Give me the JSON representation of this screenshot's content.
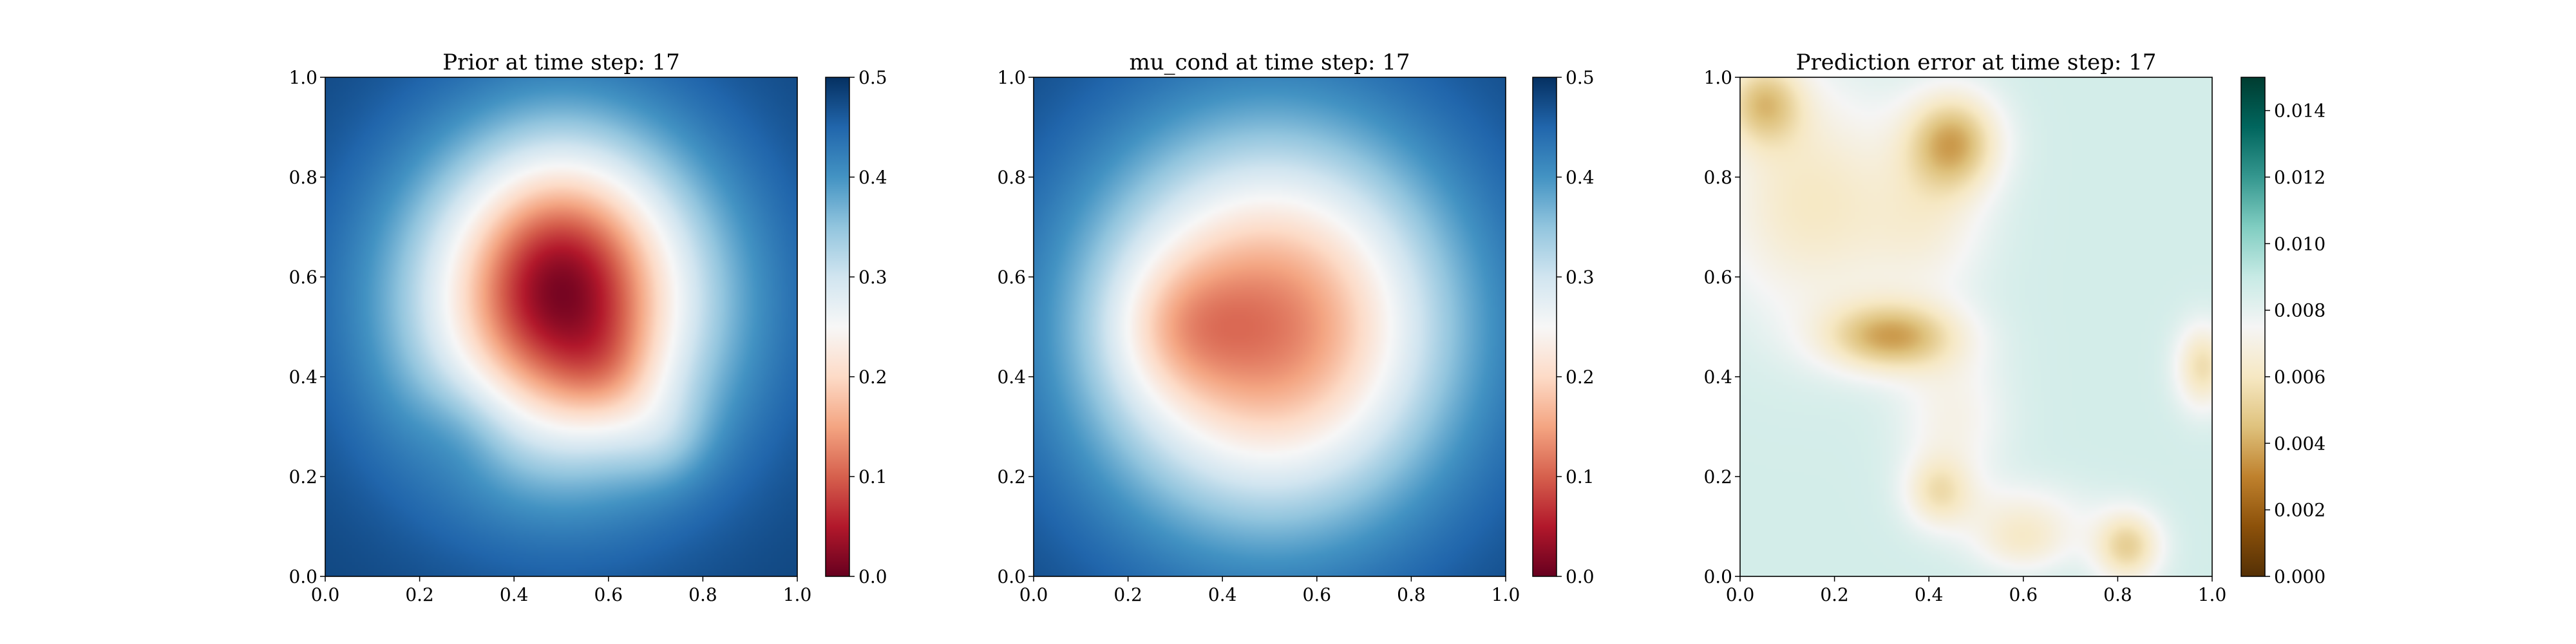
{
  "chart_data": [
    {
      "type": "heatmap",
      "title": "Prior at time step: 17",
      "xlim": [
        0,
        1
      ],
      "ylim": [
        0,
        1
      ],
      "xticks": [
        "0.0",
        "0.2",
        "0.4",
        "0.6",
        "0.8",
        "1.0"
      ],
      "yticks": [
        "0.0",
        "0.2",
        "0.4",
        "0.6",
        "0.8",
        "1.0"
      ],
      "colormap": "RdBu",
      "colorbar": {
        "range": [
          0,
          0.5
        ],
        "ticks": [
          "0.0",
          "0.1",
          "0.2",
          "0.3",
          "0.4",
          "0.5"
        ]
      },
      "field": {
        "background": 0.48,
        "blobs": [
          {
            "x": 0.5,
            "y": 0.55,
            "sx": 0.24,
            "sy": 0.24,
            "a": -0.35
          },
          {
            "x": 0.5,
            "y": 0.6,
            "sx": 0.13,
            "sy": 0.16,
            "a": -0.12
          },
          {
            "x": 0.6,
            "y": 0.4,
            "sx": 0.08,
            "sy": 0.08,
            "a": -0.05
          },
          {
            "x": 0.3,
            "y": 0.3,
            "sx": 0.08,
            "sy": 0.08,
            "a": 0.03
          },
          {
            "x": 0.72,
            "y": 0.28,
            "sx": 0.07,
            "sy": 0.07,
            "a": -0.04
          }
        ]
      }
    },
    {
      "type": "heatmap",
      "title": "mu_cond at time step: 17",
      "xlim": [
        0,
        1
      ],
      "ylim": [
        0,
        1
      ],
      "xticks": [
        "0.0",
        "0.2",
        "0.4",
        "0.6",
        "0.8",
        "1.0"
      ],
      "yticks": [
        "0.0",
        "0.2",
        "0.4",
        "0.6",
        "0.8",
        "1.0"
      ],
      "colormap": "RdBu",
      "colorbar": {
        "range": [
          0,
          0.5
        ],
        "ticks": [
          "0.0",
          "0.1",
          "0.2",
          "0.3",
          "0.4",
          "0.5"
        ]
      },
      "field": {
        "background": 0.48,
        "blobs": [
          {
            "x": 0.5,
            "y": 0.5,
            "sx": 0.27,
            "sy": 0.27,
            "a": -0.36
          },
          {
            "x": 0.3,
            "y": 0.5,
            "sx": 0.1,
            "sy": 0.1,
            "a": -0.06
          }
        ]
      }
    },
    {
      "type": "heatmap",
      "title": "Prediction error at time step: 17",
      "xlim": [
        0,
        1
      ],
      "ylim": [
        0,
        1
      ],
      "xticks": [
        "0.0",
        "0.2",
        "0.4",
        "0.6",
        "0.8",
        "1.0"
      ],
      "yticks": [
        "0.0",
        "0.2",
        "0.4",
        "0.6",
        "0.8",
        "1.0"
      ],
      "colormap": "BrBG",
      "colorbar": {
        "range": [
          0,
          0.015
        ],
        "ticks": [
          "0.000",
          "0.002",
          "0.004",
          "0.006",
          "0.008",
          "0.010",
          "0.012",
          "0.014"
        ]
      },
      "field": {
        "background": 0.0086,
        "blobs": [
          {
            "x": 0.05,
            "y": 0.95,
            "sx": 0.06,
            "sy": 0.06,
            "a": -0.0035
          },
          {
            "x": 0.15,
            "y": 0.75,
            "sx": 0.14,
            "sy": 0.16,
            "a": -0.0025
          },
          {
            "x": 0.45,
            "y": 0.87,
            "sx": 0.07,
            "sy": 0.07,
            "a": -0.0045
          },
          {
            "x": 0.4,
            "y": 0.7,
            "sx": 0.09,
            "sy": 0.1,
            "a": -0.0015
          },
          {
            "x": 0.32,
            "y": 0.48,
            "sx": 0.1,
            "sy": 0.05,
            "a": -0.0045
          },
          {
            "x": 0.45,
            "y": 0.32,
            "sx": 0.08,
            "sy": 0.1,
            "a": -0.0015
          },
          {
            "x": 0.42,
            "y": 0.17,
            "sx": 0.05,
            "sy": 0.05,
            "a": -0.0025
          },
          {
            "x": 0.6,
            "y": 0.12,
            "sx": 0.1,
            "sy": 0.05,
            "a": -0.0015
          },
          {
            "x": 0.82,
            "y": 0.06,
            "sx": 0.05,
            "sy": 0.05,
            "a": -0.0035
          },
          {
            "x": 0.98,
            "y": 0.42,
            "sx": 0.04,
            "sy": 0.06,
            "a": -0.003
          },
          {
            "x": 0.6,
            "y": 0.06,
            "sx": 0.07,
            "sy": 0.04,
            "a": -0.0015
          }
        ]
      }
    }
  ]
}
